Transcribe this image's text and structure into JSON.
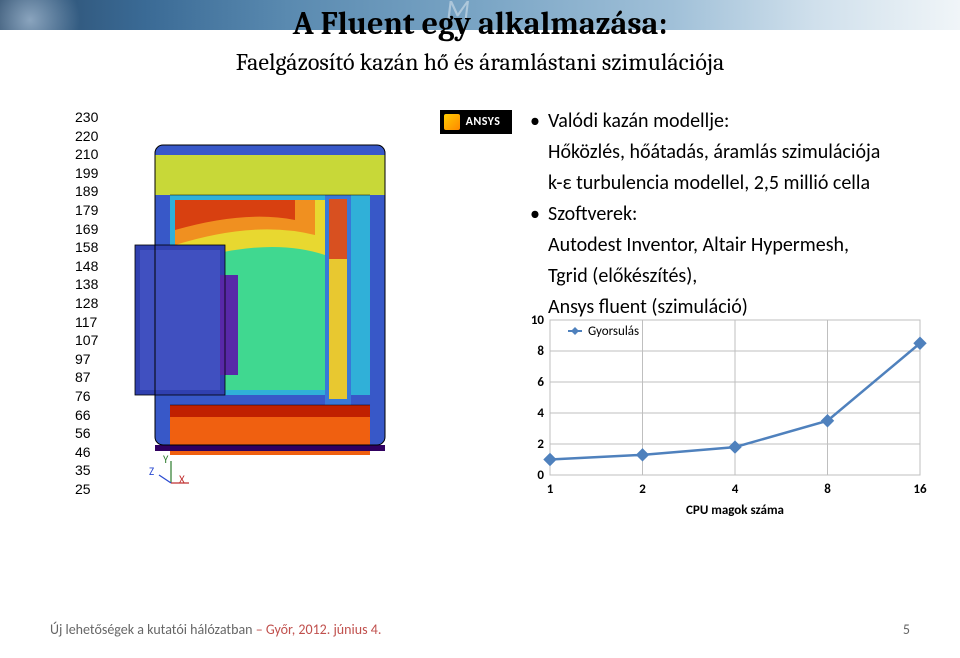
{
  "title": {
    "text": "A Fluent egy alkalmazása:",
    "fontsize": 32
  },
  "subtitle": {
    "text": "Faelgázosító kazán hő és áramlástani szimulációja",
    "fontsize": 24
  },
  "legend_values": [
    230,
    220,
    210,
    199,
    189,
    179,
    169,
    158,
    148,
    138,
    128,
    117,
    107,
    97,
    87,
    76,
    66,
    56,
    46,
    35,
    25
  ],
  "legend_colors": [
    "#c00000",
    "#d63000",
    "#e85a00",
    "#f08000",
    "#f8a000",
    "#f0c000",
    "#e8e020",
    "#c0e040",
    "#90e060",
    "#60d880",
    "#30d0a0",
    "#20c8c0",
    "#18b0d8",
    "#2090e0",
    "#3070e8",
    "#4050e0",
    "#5030d8",
    "#5820c0",
    "#5010a0",
    "#400880",
    "#300060"
  ],
  "logo_text": "ANSYS",
  "bullets": [
    {
      "head": "Valódi kazán modellje:",
      "lines": [
        "Hőközlés, hőátadás, áramlás szimulációja",
        "k-ε turbulencia modellel, 2,5 millió cella"
      ]
    },
    {
      "head": "Szoftverek:",
      "lines": [
        "Autodest Inventor, Altair Hypermesh,",
        "Tgrid (előkészítés),",
        "Ansys fluent (szimuláció)"
      ]
    }
  ],
  "chart": {
    "type": "line",
    "series_label": "Gyorsulás",
    "x_label": "CPU magok száma",
    "x_ticks": [
      "1",
      "2",
      "4",
      "8",
      "16"
    ],
    "y_ticks": [
      0,
      2,
      4,
      6,
      8,
      10
    ],
    "ylim": [
      0,
      10
    ],
    "values": [
      1,
      1.3,
      1.8,
      3.5,
      8.5
    ],
    "line_color": "#4f81bd",
    "marker_color": "#4f81bd",
    "marker_size": 6,
    "line_width": 2.5,
    "grid_color": "#bfbfbf",
    "plot_bg": "#ffffff",
    "label_fontsize": 13,
    "tick_fontsize": 13
  },
  "footer": {
    "text": "Új lehetőségek a kutatói hálózatban ",
    "accent": "– Győr, 2012. június 4."
  },
  "page_number": "5"
}
